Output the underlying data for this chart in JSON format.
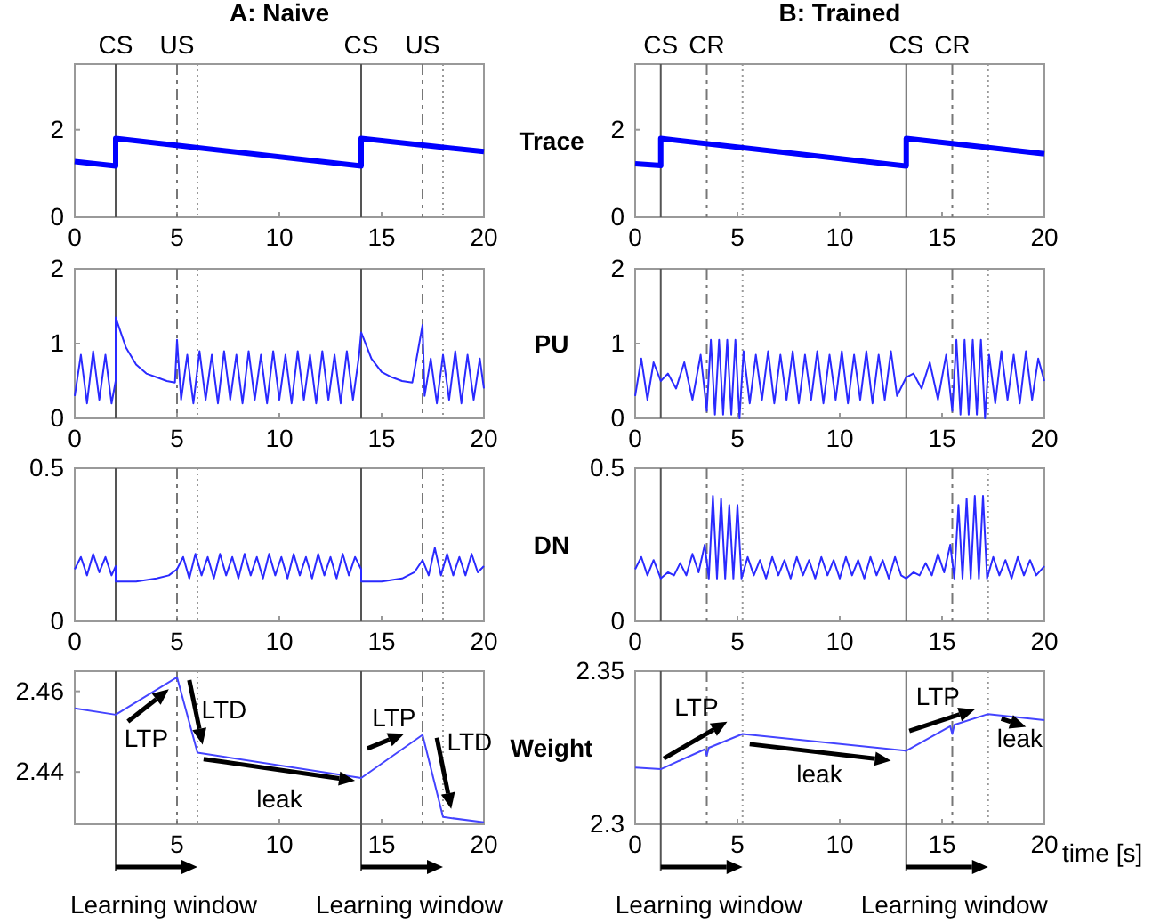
{
  "chart_data": [
    {
      "type": "line",
      "title": "A: Naive",
      "xlim": [
        0,
        20
      ],
      "xticks": [
        0,
        5,
        10,
        15,
        20
      ],
      "ylim": [
        0,
        3.5
      ],
      "yticks": [
        0,
        2
      ],
      "line_style": "solid",
      "series": [
        {
          "color": "#0000ff",
          "x": [
            0,
            2,
            2,
            14,
            14,
            20
          ],
          "values": [
            1.27,
            1.17,
            1.8,
            1.17,
            1.8,
            1.5
          ]
        }
      ],
      "ref_lines": [
        {
          "axis": "x",
          "value": 2,
          "label": "CS",
          "color": "#555555",
          "line_style": "solid"
        },
        {
          "axis": "x",
          "value": 5,
          "label": "US",
          "color": "#777777",
          "line_style": "dashed"
        },
        {
          "axis": "x",
          "value": 6,
          "label": null,
          "color": "#999999",
          "line_style": "dotted"
        },
        {
          "axis": "x",
          "value": 14,
          "label": "CS",
          "color": "#555555",
          "line_style": "solid"
        },
        {
          "axis": "x",
          "value": 17,
          "label": "US",
          "color": "#777777",
          "line_style": "dashed"
        },
        {
          "axis": "x",
          "value": 18,
          "label": null,
          "color": "#999999",
          "line_style": "dotted"
        }
      ]
    },
    {
      "type": "line",
      "title": "B: Trained",
      "ylabel": "Trace",
      "xlim": [
        0,
        20
      ],
      "xticks": [
        0,
        5,
        10,
        15,
        20
      ],
      "ylim": [
        0,
        3.5
      ],
      "yticks": [
        0,
        2
      ],
      "line_style": "solid",
      "series": [
        {
          "color": "#0000ff",
          "x": [
            0,
            1.25,
            1.25,
            13.25,
            13.25,
            20
          ],
          "values": [
            1.22,
            1.18,
            1.8,
            1.17,
            1.8,
            1.45
          ]
        }
      ],
      "ref_lines": [
        {
          "axis": "x",
          "value": 1.25,
          "label": "CS",
          "color": "#555555",
          "line_style": "solid"
        },
        {
          "axis": "x",
          "value": 3.5,
          "label": "CR",
          "color": "#777777",
          "line_style": "dashed"
        },
        {
          "axis": "x",
          "value": 5.25,
          "label": null,
          "color": "#999999",
          "line_style": "dotted"
        },
        {
          "axis": "x",
          "value": 13.25,
          "label": "CS",
          "color": "#555555",
          "line_style": "solid"
        },
        {
          "axis": "x",
          "value": 15.5,
          "label": "CR",
          "color": "#777777",
          "line_style": "dashed"
        },
        {
          "axis": "x",
          "value": 17.25,
          "label": null,
          "color": "#999999",
          "line_style": "dotted"
        }
      ]
    },
    {
      "type": "line",
      "xlim": [
        0,
        20
      ],
      "xticks": [
        0,
        5,
        10,
        15,
        20
      ],
      "ylim": [
        0,
        2
      ],
      "yticks": [
        0,
        1,
        2
      ],
      "line_style": "solid",
      "series": [
        {
          "color": "#2a2aff",
          "x": [
            0,
            0.3,
            0.6,
            0.9,
            1.2,
            1.5,
            1.8,
            2,
            2,
            2.5,
            3,
            3.5,
            4,
            4.5,
            4.9,
            5,
            5.2,
            5.5,
            5.8,
            6.1,
            6.4,
            6.7,
            7,
            7.3,
            7.6,
            7.9,
            8.2,
            8.5,
            8.8,
            9.1,
            9.4,
            9.7,
            10,
            10.3,
            10.6,
            10.9,
            11.2,
            11.5,
            11.8,
            12.1,
            12.4,
            12.7,
            13,
            13.3,
            13.6,
            13.9,
            14,
            14.5,
            15,
            15.5,
            16,
            16.5,
            17,
            17.1,
            17.4,
            17.7,
            18,
            18.3,
            18.6,
            18.9,
            19.2,
            19.5,
            19.8,
            20
          ],
          "values": [
            0.3,
            0.85,
            0.2,
            0.9,
            0.25,
            0.85,
            0.2,
            0.5,
            1.35,
            0.95,
            0.72,
            0.6,
            0.55,
            0.5,
            0.48,
            1.05,
            0.25,
            0.85,
            0.2,
            0.9,
            0.25,
            0.85,
            0.2,
            0.9,
            0.25,
            0.85,
            0.2,
            0.9,
            0.25,
            0.85,
            0.2,
            0.9,
            0.25,
            0.85,
            0.2,
            0.9,
            0.25,
            0.85,
            0.2,
            0.9,
            0.25,
            0.85,
            0.2,
            0.9,
            0.25,
            0.85,
            1.15,
            0.8,
            0.62,
            0.55,
            0.5,
            0.48,
            1.25,
            0.3,
            0.8,
            0.2,
            0.85,
            0.25,
            0.9,
            0.2,
            0.85,
            0.25,
            0.8,
            0.4
          ]
        }
      ],
      "ref_lines": [
        {
          "axis": "x",
          "value": 2,
          "label": null,
          "color": "#555555",
          "line_style": "solid"
        },
        {
          "axis": "x",
          "value": 5,
          "label": null,
          "color": "#777777",
          "line_style": "dashed"
        },
        {
          "axis": "x",
          "value": 6,
          "label": null,
          "color": "#999999",
          "line_style": "dotted"
        },
        {
          "axis": "x",
          "value": 14,
          "label": null,
          "color": "#555555",
          "line_style": "solid"
        },
        {
          "axis": "x",
          "value": 17,
          "label": null,
          "color": "#777777",
          "line_style": "dashed"
        },
        {
          "axis": "x",
          "value": 18,
          "label": null,
          "color": "#999999",
          "line_style": "dotted"
        }
      ]
    },
    {
      "type": "line",
      "ylabel": "PU",
      "xlim": [
        0,
        20
      ],
      "xticks": [
        0,
        5,
        10,
        15,
        20
      ],
      "ylim": [
        0,
        2
      ],
      "yticks": [
        0,
        1,
        2
      ],
      "line_style": "solid",
      "series": [
        {
          "color": "#2a2aff",
          "x": [
            0,
            0.3,
            0.6,
            0.9,
            1.25,
            1.6,
            2,
            2.4,
            2.8,
            3.2,
            3.5,
            3.7,
            3.9,
            4.1,
            4.3,
            4.5,
            4.7,
            4.9,
            5.1,
            5.3,
            5.6,
            5.9,
            6.2,
            6.5,
            6.8,
            7.1,
            7.4,
            7.7,
            8,
            8.3,
            8.6,
            8.9,
            9.2,
            9.5,
            9.8,
            10.1,
            10.4,
            10.7,
            11,
            11.3,
            11.6,
            11.9,
            12.2,
            12.5,
            12.8,
            13.25,
            13.6,
            14,
            14.4,
            14.8,
            15.2,
            15.5,
            15.7,
            15.9,
            16.1,
            16.3,
            16.5,
            16.7,
            16.9,
            17.1,
            17.3,
            17.6,
            17.9,
            18.2,
            18.5,
            18.8,
            19.1,
            19.4,
            19.7,
            20
          ],
          "values": [
            0.3,
            0.8,
            0.25,
            0.75,
            0.5,
            0.6,
            0.4,
            0.75,
            0.25,
            0.85,
            0.1,
            1.05,
            0.05,
            1.05,
            0.05,
            1.05,
            0.05,
            1.05,
            0.0,
            0.9,
            0.2,
            0.85,
            0.25,
            0.9,
            0.2,
            0.85,
            0.25,
            0.9,
            0.2,
            0.85,
            0.25,
            0.9,
            0.2,
            0.85,
            0.25,
            0.9,
            0.2,
            0.85,
            0.25,
            0.9,
            0.2,
            0.85,
            0.25,
            0.9,
            0.3,
            0.55,
            0.6,
            0.4,
            0.75,
            0.25,
            0.85,
            0.1,
            1.05,
            0.05,
            1.05,
            0.05,
            1.05,
            0.05,
            1.05,
            0.0,
            0.85,
            0.2,
            0.9,
            0.25,
            0.85,
            0.2,
            0.9,
            0.25,
            0.8,
            0.5
          ]
        }
      ],
      "ref_lines": [
        {
          "axis": "x",
          "value": 1.25,
          "label": null,
          "color": "#555555",
          "line_style": "solid"
        },
        {
          "axis": "x",
          "value": 3.5,
          "label": null,
          "color": "#777777",
          "line_style": "dashed"
        },
        {
          "axis": "x",
          "value": 5.25,
          "label": null,
          "color": "#999999",
          "line_style": "dotted"
        },
        {
          "axis": "x",
          "value": 13.25,
          "label": null,
          "color": "#555555",
          "line_style": "solid"
        },
        {
          "axis": "x",
          "value": 15.5,
          "label": null,
          "color": "#777777",
          "line_style": "dashed"
        },
        {
          "axis": "x",
          "value": 17.25,
          "label": null,
          "color": "#999999",
          "line_style": "dotted"
        }
      ]
    },
    {
      "type": "line",
      "xlim": [
        0,
        20
      ],
      "xticks": [
        0,
        5,
        10,
        15,
        20
      ],
      "ylim": [
        0,
        0.5
      ],
      "yticks": [
        0,
        0.5
      ],
      "line_style": "solid",
      "series": [
        {
          "color": "#2a2aff",
          "x": [
            0,
            0.3,
            0.6,
            0.9,
            1.2,
            1.5,
            1.8,
            2,
            2,
            3,
            4,
            4.6,
            5,
            5.3,
            5.6,
            5.9,
            6.2,
            6.5,
            6.8,
            7.1,
            7.4,
            7.7,
            8,
            8.3,
            8.6,
            8.9,
            9.2,
            9.5,
            9.8,
            10.1,
            10.4,
            10.7,
            11,
            11.3,
            11.6,
            11.9,
            12.2,
            12.5,
            12.8,
            13.1,
            13.4,
            13.7,
            14,
            14,
            15,
            16,
            16.6,
            17,
            17.3,
            17.6,
            17.9,
            18.2,
            18.5,
            18.8,
            19.1,
            19.4,
            19.7,
            20
          ],
          "values": [
            0.17,
            0.21,
            0.15,
            0.22,
            0.16,
            0.21,
            0.15,
            0.18,
            0.13,
            0.13,
            0.14,
            0.15,
            0.17,
            0.21,
            0.14,
            0.22,
            0.15,
            0.21,
            0.14,
            0.22,
            0.15,
            0.21,
            0.14,
            0.22,
            0.15,
            0.21,
            0.14,
            0.22,
            0.15,
            0.21,
            0.14,
            0.22,
            0.15,
            0.21,
            0.14,
            0.22,
            0.15,
            0.21,
            0.14,
            0.22,
            0.15,
            0.21,
            0.17,
            0.13,
            0.13,
            0.14,
            0.16,
            0.2,
            0.15,
            0.24,
            0.15,
            0.22,
            0.15,
            0.21,
            0.15,
            0.22,
            0.16,
            0.18
          ]
        }
      ],
      "ref_lines": [
        {
          "axis": "x",
          "value": 2,
          "label": null,
          "color": "#555555",
          "line_style": "solid"
        },
        {
          "axis": "x",
          "value": 5,
          "label": null,
          "color": "#777777",
          "line_style": "dashed"
        },
        {
          "axis": "x",
          "value": 6,
          "label": null,
          "color": "#999999",
          "line_style": "dotted"
        },
        {
          "axis": "x",
          "value": 14,
          "label": null,
          "color": "#555555",
          "line_style": "solid"
        },
        {
          "axis": "x",
          "value": 17,
          "label": null,
          "color": "#777777",
          "line_style": "dashed"
        },
        {
          "axis": "x",
          "value": 18,
          "label": null,
          "color": "#999999",
          "line_style": "dotted"
        }
      ]
    },
    {
      "type": "line",
      "ylabel": "DN",
      "xlim": [
        0,
        20
      ],
      "xticks": [
        0,
        5,
        10,
        15,
        20
      ],
      "ylim": [
        0,
        0.5
      ],
      "yticks": [
        0,
        0.5
      ],
      "line_style": "solid",
      "series": [
        {
          "color": "#2a2aff",
          "x": [
            0,
            0.3,
            0.6,
            0.9,
            1.25,
            1.6,
            1.9,
            2.2,
            2.5,
            2.8,
            3.1,
            3.4,
            3.6,
            3.8,
            4,
            4.2,
            4.4,
            4.6,
            4.8,
            5,
            5.2,
            5.5,
            5.8,
            6.1,
            6.4,
            6.7,
            7,
            7.3,
            7.6,
            7.9,
            8.2,
            8.5,
            8.8,
            9.1,
            9.4,
            9.7,
            10,
            10.3,
            10.6,
            10.9,
            11.2,
            11.5,
            11.8,
            12.1,
            12.4,
            12.7,
            13,
            13.25,
            13.6,
            13.9,
            14.2,
            14.5,
            14.8,
            15.1,
            15.4,
            15.6,
            15.8,
            16,
            16.2,
            16.4,
            16.6,
            16.8,
            17,
            17.2,
            17.5,
            17.8,
            18.1,
            18.4,
            18.7,
            19,
            19.3,
            19.6,
            20
          ],
          "values": [
            0.17,
            0.21,
            0.15,
            0.2,
            0.14,
            0.16,
            0.15,
            0.19,
            0.15,
            0.22,
            0.16,
            0.25,
            0.14,
            0.41,
            0.14,
            0.4,
            0.14,
            0.38,
            0.14,
            0.38,
            0.14,
            0.21,
            0.15,
            0.2,
            0.14,
            0.21,
            0.15,
            0.2,
            0.14,
            0.21,
            0.15,
            0.2,
            0.14,
            0.21,
            0.15,
            0.2,
            0.14,
            0.21,
            0.15,
            0.2,
            0.14,
            0.21,
            0.15,
            0.2,
            0.14,
            0.21,
            0.15,
            0.14,
            0.16,
            0.15,
            0.19,
            0.15,
            0.22,
            0.16,
            0.25,
            0.14,
            0.38,
            0.14,
            0.4,
            0.14,
            0.41,
            0.14,
            0.41,
            0.14,
            0.21,
            0.15,
            0.2,
            0.14,
            0.21,
            0.15,
            0.2,
            0.15,
            0.18
          ]
        }
      ],
      "ref_lines": [
        {
          "axis": "x",
          "value": 1.25,
          "label": null,
          "color": "#555555",
          "line_style": "solid"
        },
        {
          "axis": "x",
          "value": 3.5,
          "label": null,
          "color": "#777777",
          "line_style": "dashed"
        },
        {
          "axis": "x",
          "value": 5.25,
          "label": null,
          "color": "#999999",
          "line_style": "dotted"
        },
        {
          "axis": "x",
          "value": 13.25,
          "label": null,
          "color": "#555555",
          "line_style": "solid"
        },
        {
          "axis": "x",
          "value": 15.5,
          "label": null,
          "color": "#777777",
          "line_style": "dashed"
        },
        {
          "axis": "x",
          "value": 17.25,
          "label": null,
          "color": "#999999",
          "line_style": "dotted"
        }
      ]
    },
    {
      "type": "line",
      "xlim": [
        0,
        20
      ],
      "xticks": [
        5,
        10,
        15,
        20
      ],
      "ylim": [
        2.427,
        2.465
      ],
      "yticks": [
        2.44,
        2.46
      ],
      "line_style": "solid",
      "series": [
        {
          "color": "#4444ff",
          "x": [
            0,
            2,
            5,
            6,
            14,
            17,
            18,
            20
          ],
          "values": [
            2.4558,
            2.4542,
            2.4635,
            2.4448,
            2.4385,
            2.4492,
            2.4288,
            2.4275
          ]
        }
      ],
      "ref_lines": [
        {
          "axis": "x",
          "value": 2,
          "label": null,
          "color": "#555555",
          "line_style": "solid"
        },
        {
          "axis": "x",
          "value": 5,
          "label": null,
          "color": "#777777",
          "line_style": "dashed"
        },
        {
          "axis": "x",
          "value": 6,
          "label": null,
          "color": "#999999",
          "line_style": "dotted"
        },
        {
          "axis": "x",
          "value": 14,
          "label": null,
          "color": "#555555",
          "line_style": "solid"
        },
        {
          "axis": "x",
          "value": 17,
          "label": null,
          "color": "#777777",
          "line_style": "dashed"
        },
        {
          "axis": "x",
          "value": 18,
          "label": null,
          "color": "#999999",
          "line_style": "dotted"
        }
      ],
      "annotations": [
        {
          "text": "LTP",
          "x": 4,
          "y": 2.4604
        },
        {
          "text": "LTD",
          "x": 5.5,
          "y": 2.45415
        },
        {
          "text": "leak",
          "x": 10,
          "y": 2.44165
        },
        {
          "text": "LTP",
          "x": 16,
          "y": 2.44563
        },
        {
          "text": "LTD",
          "x": 17.5,
          "y": 2.439
        },
        "Learning window",
        "Learning window"
      ]
    },
    {
      "type": "line",
      "ylabel": "Weight",
      "xlabel": "time [s]",
      "xlim": [
        0,
        20
      ],
      "xticks": [
        0,
        5,
        10,
        15,
        20
      ],
      "ylim": [
        2.3,
        2.35
      ],
      "yticks": [
        2.3,
        2.35
      ],
      "line_style": "solid",
      "series": [
        {
          "color": "#4444ff",
          "x": [
            0,
            1.25,
            3.4,
            3.5,
            3.6,
            5.25,
            13.25,
            15.4,
            15.5,
            15.6,
            17.25,
            20
          ],
          "values": [
            2.3185,
            2.318,
            2.3245,
            2.3225,
            2.325,
            2.3295,
            2.324,
            2.332,
            2.3295,
            2.3325,
            2.336,
            2.334
          ]
        }
      ],
      "ref_lines": [
        {
          "axis": "x",
          "value": 1.25,
          "label": null,
          "color": "#555555",
          "line_style": "solid"
        },
        {
          "axis": "x",
          "value": 3.5,
          "label": null,
          "color": "#777777",
          "line_style": "dashed"
        },
        {
          "axis": "x",
          "value": 5.25,
          "label": null,
          "color": "#999999",
          "line_style": "dotted"
        },
        {
          "axis": "x",
          "value": 13.25,
          "label": null,
          "color": "#555555",
          "line_style": "solid"
        },
        {
          "axis": "x",
          "value": 15.5,
          "label": null,
          "color": "#777777",
          "line_style": "dashed"
        },
        {
          "axis": "x",
          "value": 17.25,
          "label": null,
          "color": "#999999",
          "line_style": "dotted"
        }
      ],
      "annotations": [
        {
          "text": "LTP",
          "x": 3,
          "y": 2.3233
        },
        {
          "text": "leak",
          "x": 9,
          "y": 2.32692
        },
        {
          "text": "LTP",
          "x": 14.5,
          "y": 2.32865
        },
        {
          "text": "leak",
          "x": 18.5,
          "y": 2.33509
        },
        "Learning window",
        "Learning window"
      ]
    }
  ]
}
